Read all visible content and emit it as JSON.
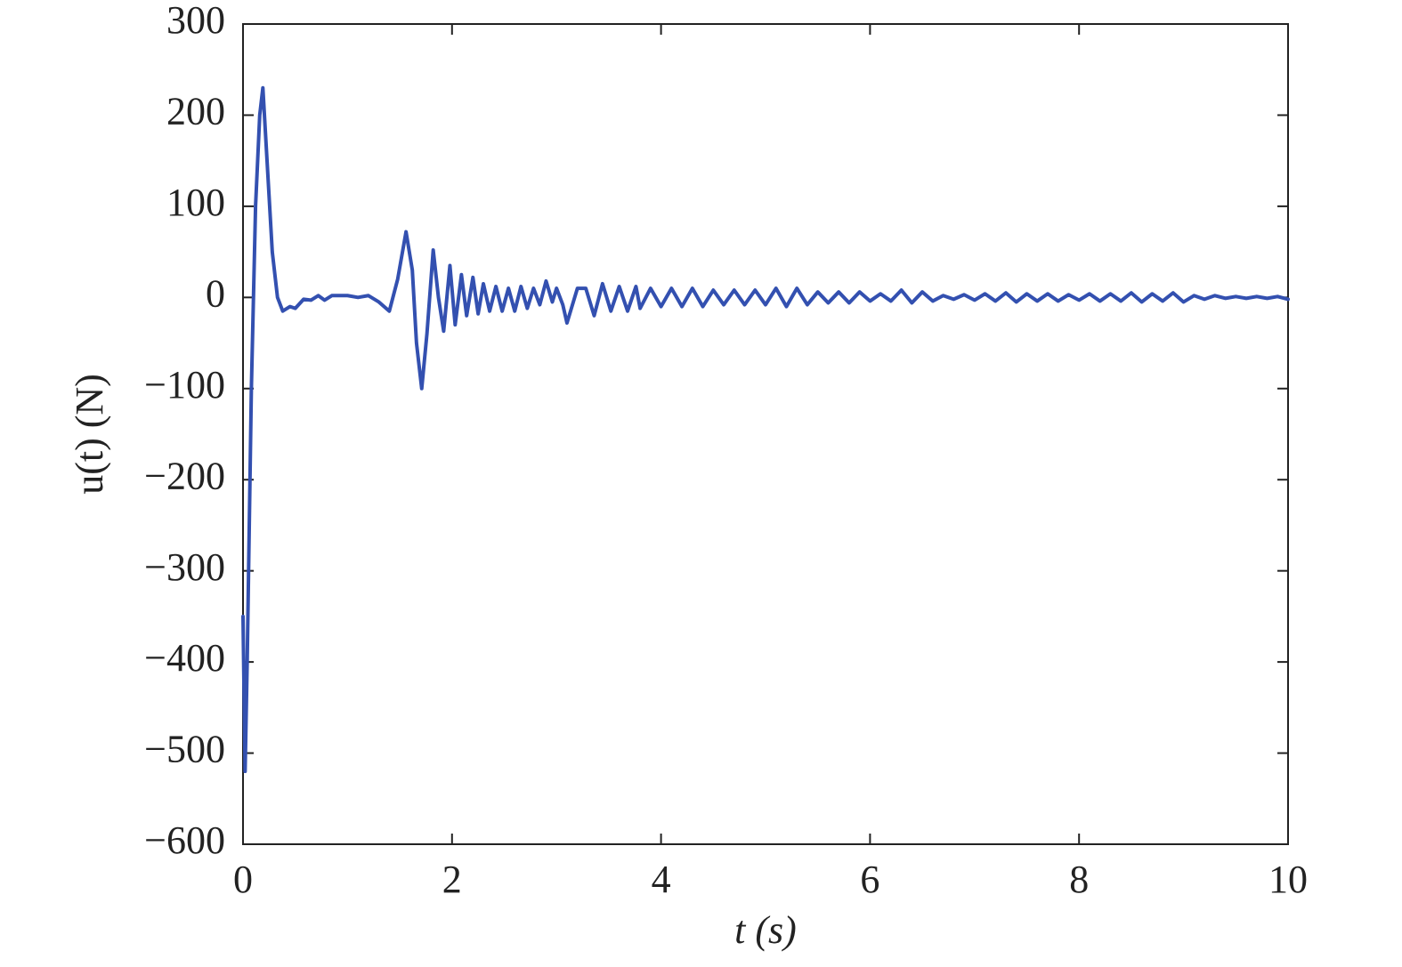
{
  "chart_data": {
    "type": "line",
    "xlabel": "t (s)",
    "ylabel": "u(t) (N)",
    "xlim": [
      0,
      10
    ],
    "ylim": [
      -600,
      300
    ],
    "xticks": [
      0,
      2,
      4,
      6,
      8,
      10
    ],
    "yticks": [
      {
        "value": -600,
        "label": "−600"
      },
      {
        "value": -500,
        "label": "−500"
      },
      {
        "value": -400,
        "label": "−400"
      },
      {
        "value": -300,
        "label": "−300"
      },
      {
        "value": -200,
        "label": "−200"
      },
      {
        "value": -100,
        "label": "−100"
      },
      0,
      100,
      200,
      300
    ],
    "series": [
      {
        "color": "#3350b0",
        "x": [
          0,
          0.02,
          0.04,
          0.08,
          0.12,
          0.16,
          0.19,
          0.23,
          0.28,
          0.33,
          0.38,
          0.45,
          0.5,
          0.58,
          0.65,
          0.72,
          0.78,
          0.85,
          1.0,
          1.1,
          1.2,
          1.3,
          1.4,
          1.48,
          1.56,
          1.62,
          1.66,
          1.71,
          1.76,
          1.82,
          1.87,
          1.92,
          1.98,
          2.03,
          2.09,
          2.14,
          2.2,
          2.25,
          2.3,
          2.36,
          2.42,
          2.48,
          2.54,
          2.6,
          2.66,
          2.72,
          2.78,
          2.84,
          2.9,
          2.96,
          3.0,
          3.06,
          3.1,
          3.2,
          3.28,
          3.36,
          3.44,
          3.52,
          3.6,
          3.68,
          3.76,
          3.8,
          3.9,
          4.0,
          4.1,
          4.2,
          4.3,
          4.4,
          4.5,
          4.6,
          4.7,
          4.8,
          4.9,
          5.0,
          5.1,
          5.2,
          5.3,
          5.4,
          5.5,
          5.6,
          5.7,
          5.8,
          5.9,
          6.0,
          6.1,
          6.2,
          6.3,
          6.4,
          6.5,
          6.6,
          6.7,
          6.8,
          6.9,
          7.0,
          7.1,
          7.2,
          7.3,
          7.4,
          7.5,
          7.6,
          7.7,
          7.8,
          7.9,
          8.0,
          8.1,
          8.2,
          8.3,
          8.4,
          8.5,
          8.6,
          8.7,
          8.8,
          8.9,
          9.0,
          9.1,
          9.2,
          9.3,
          9.4,
          9.5,
          9.6,
          9.7,
          9.8,
          9.9,
          10.0
        ],
        "values": [
          -350,
          -520,
          -400,
          -100,
          100,
          200,
          230,
          150,
          50,
          0,
          -15,
          -10,
          -12,
          -2,
          -3,
          2,
          -3,
          2,
          2,
          0,
          2,
          -5,
          -15,
          20,
          72,
          30,
          -50,
          -100,
          -40,
          52,
          0,
          -37,
          35,
          -30,
          25,
          -20,
          22,
          -18,
          15,
          -15,
          12,
          -15,
          10,
          -15,
          12,
          -12,
          10,
          -8,
          18,
          -5,
          10,
          -8,
          -28,
          10,
          10,
          -20,
          15,
          -15,
          12,
          -15,
          12,
          -12,
          10,
          -10,
          10,
          -10,
          10,
          -10,
          8,
          -8,
          8,
          -8,
          8,
          -8,
          10,
          -10,
          10,
          -8,
          6,
          -6,
          6,
          -6,
          6,
          -4,
          4,
          -4,
          8,
          -6,
          6,
          -4,
          2,
          -2,
          3,
          -3,
          4,
          -4,
          5,
          -5,
          4,
          -4,
          4,
          -4,
          3,
          -3,
          4,
          -4,
          4,
          -4,
          5,
          -5,
          4,
          -4,
          5,
          -5,
          2,
          -2,
          2,
          -1,
          1,
          -1,
          1,
          -1,
          1,
          -2
        ]
      }
    ]
  }
}
